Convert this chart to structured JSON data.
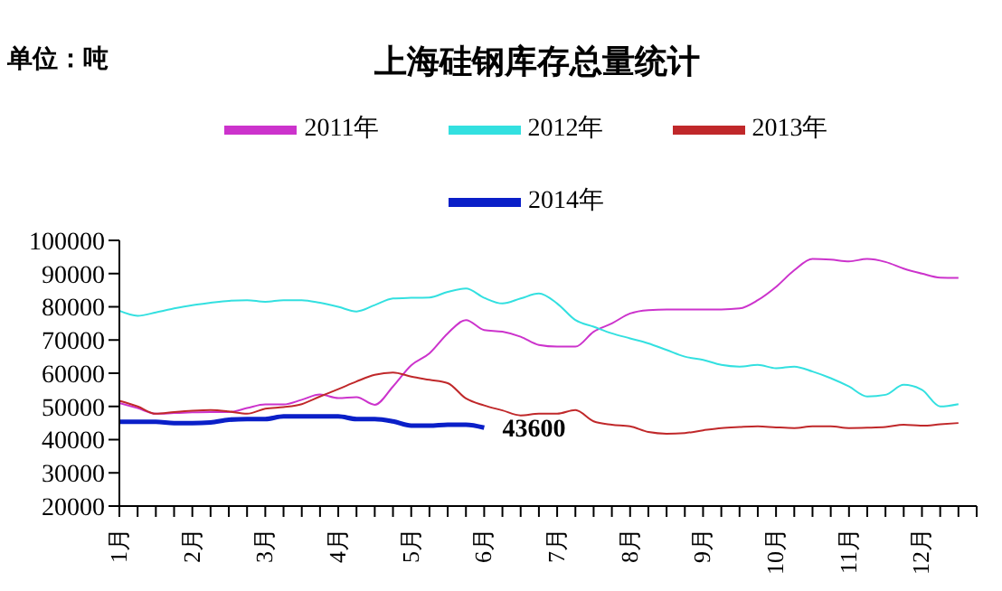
{
  "chart_data": {
    "type": "line",
    "title": "上海硅钢库存总量统计",
    "annotations": [
      "单位：吨"
    ],
    "categories": [
      "1月",
      null,
      null,
      null,
      "2月",
      null,
      null,
      null,
      "3月",
      null,
      null,
      null,
      "4月",
      null,
      null,
      null,
      "5月",
      null,
      null,
      null,
      "6月",
      null,
      null,
      null,
      "7月",
      null,
      null,
      null,
      "8月",
      null,
      null,
      null,
      "9月",
      null,
      null,
      null,
      "10月",
      null,
      null,
      null,
      "11月",
      null,
      null,
      null,
      "12月",
      null,
      null,
      null
    ],
    "ylim": [
      20000,
      100000
    ],
    "yticks": [
      20000,
      30000,
      40000,
      50000,
      60000,
      70000,
      80000,
      90000,
      100000
    ],
    "grid": false,
    "legend": "top",
    "marker": "none",
    "line_style": "solid",
    "series": [
      {
        "name": "2011年",
        "color": "#cc33cc",
        "values": [
          51000,
          49500,
          47800,
          48000,
          48200,
          48300,
          48300,
          49500,
          50600,
          50600,
          52000,
          53600,
          52500,
          52800,
          50500,
          56000,
          62400,
          66000,
          72000,
          76000,
          73000,
          72500,
          71000,
          68500,
          68000,
          68000,
          72500,
          75000,
          78000,
          79000,
          79200,
          79200,
          79200,
          79200,
          79500,
          82000,
          86000,
          91000,
          94400,
          94200,
          93700,
          94400,
          93500,
          91500,
          90000,
          88800,
          88700,
          null
        ]
      },
      {
        "name": "2012年",
        "color": "#33e0e0",
        "values": [
          78800,
          77300,
          78300,
          79500,
          80500,
          81200,
          81800,
          82000,
          81500,
          82000,
          82000,
          81200,
          80000,
          78600,
          80500,
          82500,
          82700,
          82800,
          84500,
          85500,
          82700,
          81000,
          82500,
          84000,
          81000,
          76000,
          74000,
          72000,
          70500,
          69000,
          67000,
          65000,
          64000,
          62500,
          62000,
          62500,
          61500,
          62000,
          60500,
          58500,
          56000,
          53000,
          53500,
          56500,
          55000,
          50000,
          50700,
          null
        ]
      },
      {
        "name": "2013年",
        "color": "#c0282a",
        "values": [
          51700,
          50000,
          47800,
          48300,
          48700,
          48900,
          48500,
          47800,
          49300,
          49800,
          50700,
          53000,
          55200,
          57500,
          59500,
          60200,
          59000,
          58000,
          57000,
          52400,
          50300,
          48800,
          47300,
          47800,
          47800,
          48900,
          45500,
          44500,
          44000,
          42300,
          41800,
          42000,
          42800,
          43500,
          43800,
          44000,
          43700,
          43500,
          44000,
          44000,
          43500,
          43600,
          43800,
          44500,
          44200,
          44600,
          45000,
          null
        ]
      },
      {
        "name": "2014年",
        "color": "#0a1fc8",
        "values": [
          45400,
          45400,
          45400,
          45000,
          45000,
          45200,
          46000,
          46200,
          46200,
          47000,
          47000,
          47000,
          47000,
          46200,
          46200,
          45500,
          44200,
          44200,
          44500,
          44500,
          43600,
          null,
          null,
          null,
          null,
          null,
          null,
          null,
          null,
          null,
          null,
          null,
          null,
          null,
          null,
          null,
          null,
          null,
          null,
          null,
          null,
          null,
          null,
          null,
          null,
          null,
          null,
          null
        ],
        "value_labels": [
          null,
          null,
          null,
          null,
          null,
          null,
          null,
          null,
          null,
          null,
          null,
          null,
          null,
          null,
          null,
          null,
          null,
          null,
          null,
          null,
          "43600",
          null,
          null,
          null,
          null,
          null,
          null,
          null,
          null,
          null,
          null,
          null,
          null,
          null,
          null,
          null,
          null,
          null,
          null,
          null,
          null,
          null,
          null,
          null,
          null,
          null,
          null,
          null
        ]
      }
    ]
  }
}
